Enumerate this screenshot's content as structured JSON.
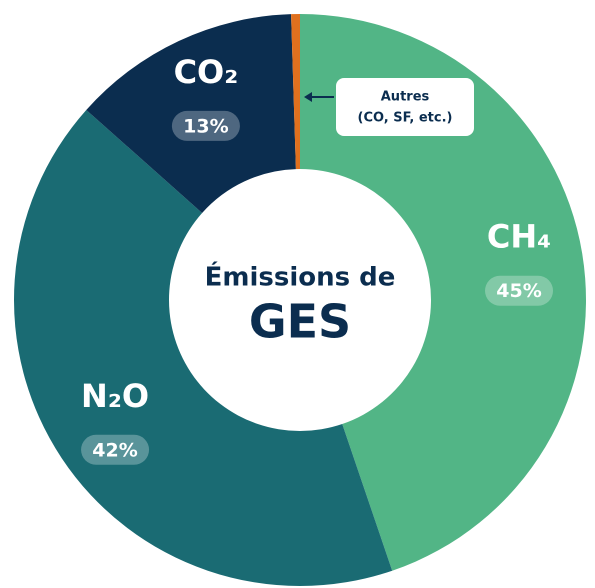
{
  "chart_data": {
    "type": "donut",
    "categories": [
      "CH₄",
      "N₂O",
      "CO₂",
      "Autres"
    ],
    "values": [
      45,
      42,
      13,
      0.5
    ],
    "value_labels": [
      "45%",
      "42%",
      "13%",
      null
    ],
    "colors": [
      "#52b586",
      "#1a6b73",
      "#0b2d4f",
      "#e0701e"
    ],
    "center_title": "Émissions de",
    "center_subtitle": "GES",
    "annotation": "(CO, SF, etc.)"
  }
}
